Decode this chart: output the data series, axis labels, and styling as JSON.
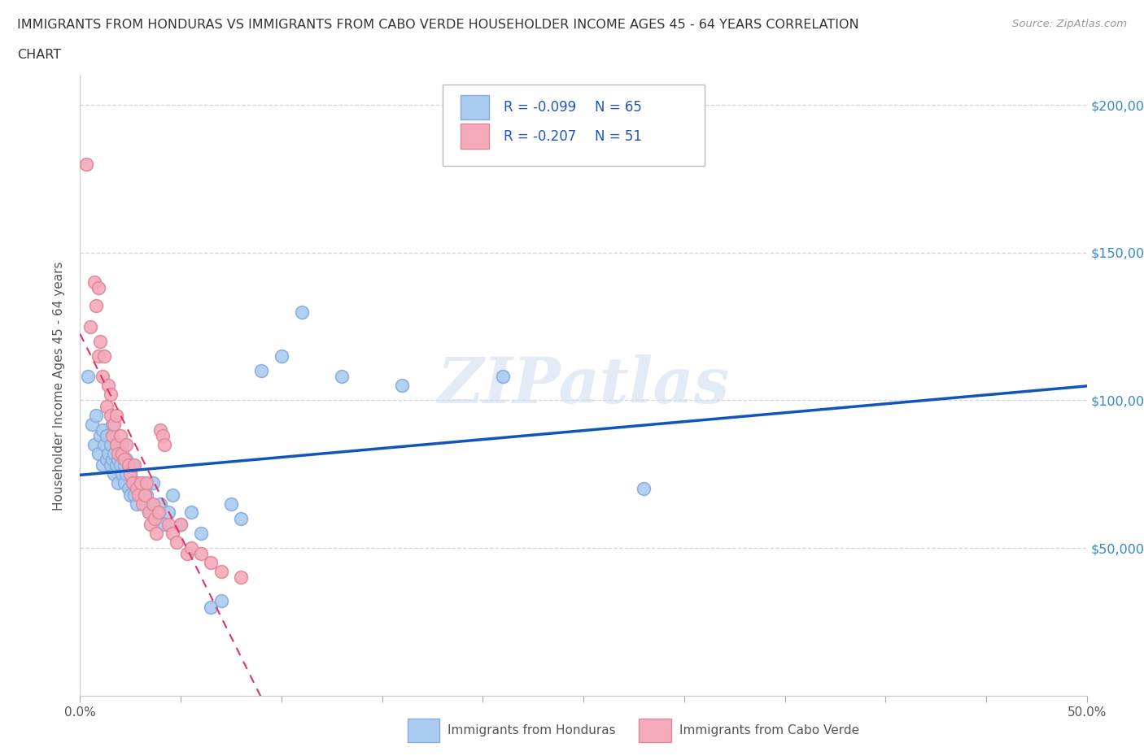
{
  "title_line1": "IMMIGRANTS FROM HONDURAS VS IMMIGRANTS FROM CABO VERDE HOUSEHOLDER INCOME AGES 45 - 64 YEARS CORRELATION",
  "title_line2": "CHART",
  "source_text": "Source: ZipAtlas.com",
  "ylabel": "Householder Income Ages 45 - 64 years",
  "xmin": 0.0,
  "xmax": 0.5,
  "ymin": 0,
  "ymax": 210000,
  "yticks": [
    0,
    50000,
    100000,
    150000,
    200000
  ],
  "ytick_labels": [
    "",
    "$50,000",
    "$100,000",
    "$150,000",
    "$200,000"
  ],
  "xticks": [
    0.0,
    0.05,
    0.1,
    0.15,
    0.2,
    0.25,
    0.3,
    0.35,
    0.4,
    0.45,
    0.5
  ],
  "xtick_labels": [
    "0.0%",
    "",
    "",
    "",
    "",
    "",
    "",
    "",
    "",
    "",
    "50.0%"
  ],
  "honduras_color": "#aaccf0",
  "honduras_edge": "#88aadd",
  "cabo_verde_color": "#f5aabb",
  "cabo_verde_edge": "#dd8899",
  "regression_honduras_color": "#1155bb",
  "regression_cabo_verde_color": "#dd3366",
  "legend_R_honduras": "R = -0.099",
  "legend_N_honduras": "N = 65",
  "legend_R_cabo": "R = -0.207",
  "legend_N_cabo": "N = 51",
  "watermark": "ZIPatlas",
  "background_color": "#ffffff",
  "grid_color": "#cccccc",
  "honduras_x": [
    0.004,
    0.006,
    0.007,
    0.008,
    0.009,
    0.01,
    0.011,
    0.011,
    0.012,
    0.013,
    0.013,
    0.014,
    0.015,
    0.015,
    0.016,
    0.016,
    0.017,
    0.017,
    0.018,
    0.018,
    0.019,
    0.019,
    0.02,
    0.02,
    0.021,
    0.021,
    0.022,
    0.022,
    0.023,
    0.023,
    0.024,
    0.025,
    0.025,
    0.026,
    0.026,
    0.027,
    0.028,
    0.028,
    0.029,
    0.03,
    0.031,
    0.032,
    0.033,
    0.034,
    0.035,
    0.036,
    0.038,
    0.04,
    0.042,
    0.044,
    0.046,
    0.05,
    0.055,
    0.06,
    0.065,
    0.07,
    0.075,
    0.08,
    0.09,
    0.1,
    0.11,
    0.13,
    0.16,
    0.21,
    0.28
  ],
  "honduras_y": [
    108000,
    92000,
    85000,
    95000,
    82000,
    88000,
    90000,
    78000,
    85000,
    80000,
    88000,
    82000,
    85000,
    78000,
    92000,
    80000,
    82000,
    75000,
    85000,
    78000,
    80000,
    72000,
    78000,
    82000,
    75000,
    85000,
    78000,
    72000,
    80000,
    75000,
    70000,
    75000,
    68000,
    78000,
    72000,
    68000,
    72000,
    65000,
    70000,
    68000,
    72000,
    65000,
    68000,
    62000,
    65000,
    72000,
    60000,
    65000,
    58000,
    62000,
    68000,
    58000,
    62000,
    55000,
    30000,
    32000,
    65000,
    60000,
    110000,
    115000,
    130000,
    108000,
    105000,
    108000,
    70000
  ],
  "cabo_verde_x": [
    0.003,
    0.005,
    0.007,
    0.008,
    0.009,
    0.01,
    0.011,
    0.012,
    0.013,
    0.014,
    0.015,
    0.015,
    0.016,
    0.017,
    0.018,
    0.018,
    0.019,
    0.02,
    0.021,
    0.022,
    0.023,
    0.024,
    0.025,
    0.026,
    0.027,
    0.028,
    0.029,
    0.03,
    0.031,
    0.032,
    0.033,
    0.034,
    0.035,
    0.036,
    0.037,
    0.038,
    0.039,
    0.04,
    0.041,
    0.042,
    0.044,
    0.046,
    0.048,
    0.05,
    0.053,
    0.055,
    0.06,
    0.065,
    0.07,
    0.08,
    0.009
  ],
  "cabo_verde_y": [
    180000,
    125000,
    140000,
    132000,
    115000,
    120000,
    108000,
    115000,
    98000,
    105000,
    95000,
    102000,
    88000,
    92000,
    85000,
    95000,
    82000,
    88000,
    82000,
    80000,
    85000,
    78000,
    75000,
    72000,
    78000,
    70000,
    68000,
    72000,
    65000,
    68000,
    72000,
    62000,
    58000,
    65000,
    60000,
    55000,
    62000,
    90000,
    88000,
    85000,
    58000,
    55000,
    52000,
    58000,
    48000,
    50000,
    48000,
    45000,
    42000,
    40000,
    138000
  ]
}
